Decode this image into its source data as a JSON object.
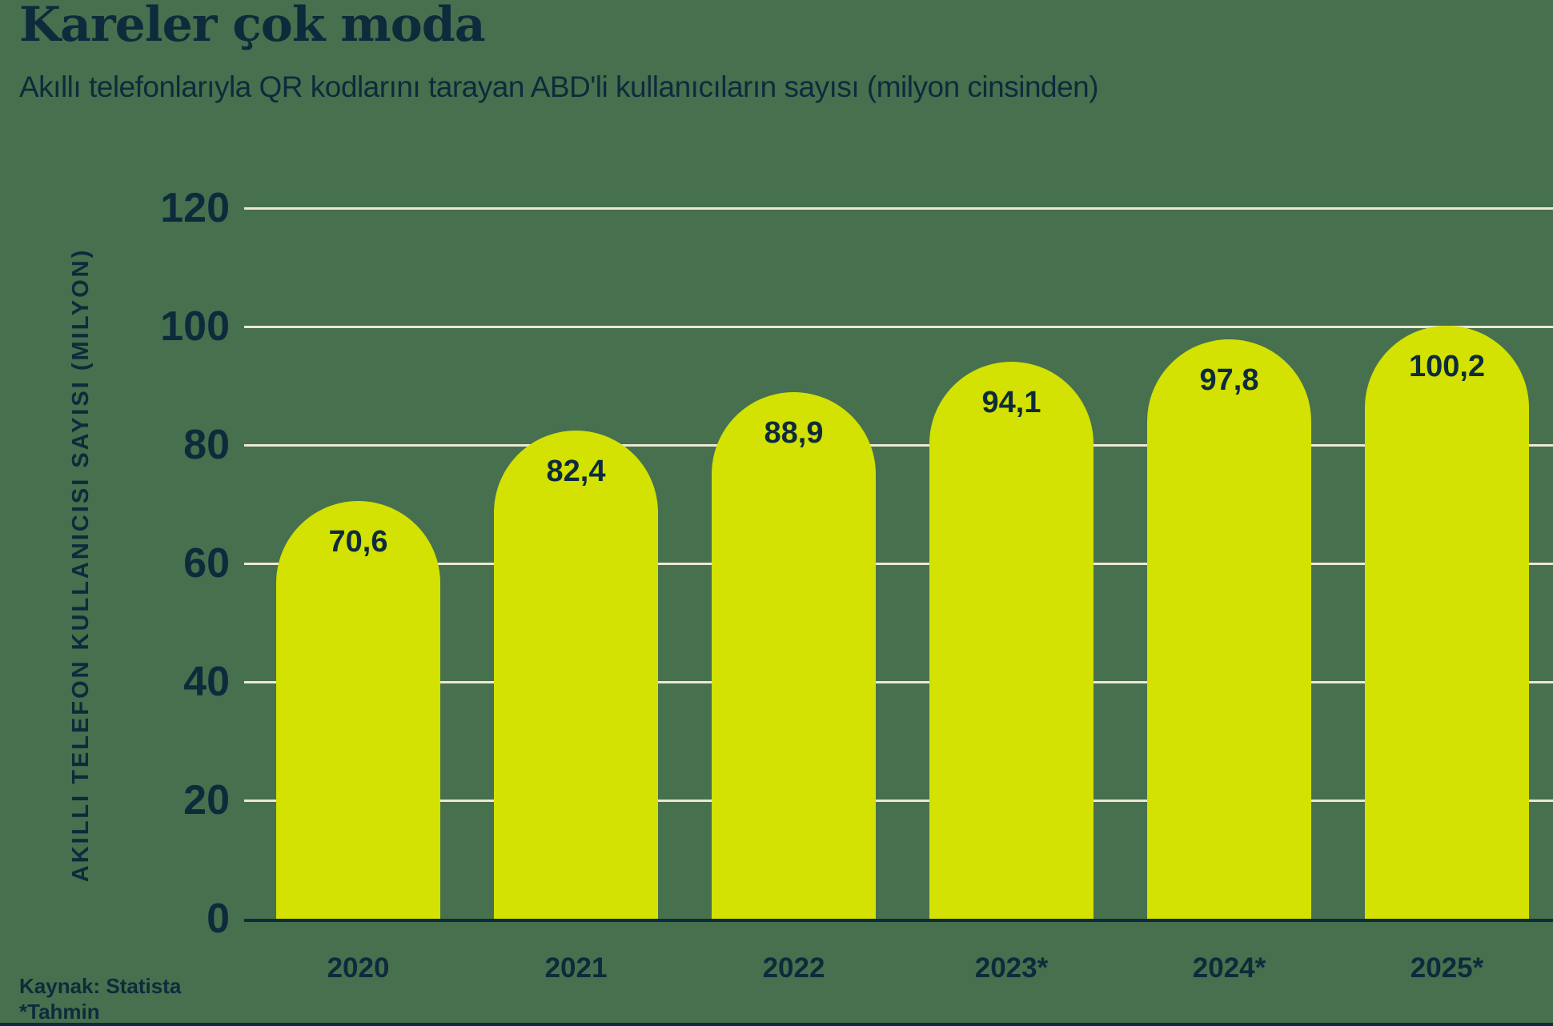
{
  "header": {
    "title": "Kareler çok moda",
    "subtitle": "Akıllı telefonlarıyla QR kodlarını tarayan ABD'li kullanıcıların sayısı (milyon cinsinden)"
  },
  "chart_data": {
    "type": "bar",
    "title": "Kareler çok moda",
    "subtitle": "Akıllı telefonlarıyla QR kodlarını tarayan ABD'li kullanıcıların sayısı (milyon cinsinden)",
    "categories": [
      "2020",
      "2021",
      "2022",
      "2023*",
      "2024*",
      "2025*"
    ],
    "values": [
      70.6,
      82.4,
      88.9,
      94.1,
      97.8,
      100.2
    ],
    "value_labels": [
      "70,6",
      "82,4",
      "88,9",
      "94,1",
      "97,8",
      "100,2"
    ],
    "xlabel": "",
    "ylabel": "AKILLI TELEFON KULLANICISI SAYISI (MILYON)",
    "ylim": [
      0,
      120
    ],
    "yticks": [
      0,
      20,
      40,
      60,
      80,
      100,
      120
    ],
    "grid": true,
    "legend": false,
    "colors": {
      "background": "#47704e",
      "bar": "#d3e103",
      "gridline": "#ece8d1",
      "text": "#0e2b3c"
    }
  },
  "footer": {
    "source": "Kaynak: Statista",
    "note": "*Tahmin"
  }
}
